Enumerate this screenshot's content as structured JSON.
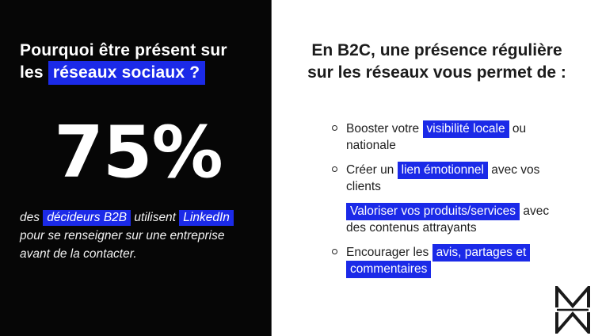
{
  "colors": {
    "accent": "#1b2ae8",
    "left_panel_background": "#060606",
    "text_dark": "#1d1d1d",
    "text_light": "#ffffff"
  },
  "left_panel": {
    "title_segments": [
      {
        "text": "Pourquoi être présent sur",
        "br": true
      },
      {
        "text": "les "
      },
      {
        "text": "réseaux sociaux ?",
        "highlight": true
      }
    ],
    "stat_value": "75%",
    "caption_segments": [
      {
        "text": "des "
      },
      {
        "text": "décideurs B2B",
        "highlight": true
      },
      {
        "text": " utilisent "
      },
      {
        "text": "LinkedIn",
        "highlight": true,
        "br": true
      },
      {
        "text": "pour se renseigner sur une entreprise",
        "br": true
      },
      {
        "text": "avant de la contacter."
      }
    ]
  },
  "right_panel": {
    "heading_segments": [
      {
        "text": "En B2C, une présence régulière",
        "br": true
      },
      {
        "text": "sur les réseaux vous permet de :"
      }
    ],
    "bullets": [
      {
        "marker": true,
        "segments": [
          {
            "text": "Booster votre "
          },
          {
            "text": "visibilité locale",
            "highlight": true
          },
          {
            "text": " ou",
            "br": true
          },
          {
            "text": "nationale"
          }
        ]
      },
      {
        "marker": true,
        "segments": [
          {
            "text": "Créer un "
          },
          {
            "text": "lien émotionnel",
            "highlight": true
          },
          {
            "text": " avec vos",
            "br": true
          },
          {
            "text": "clients"
          }
        ]
      },
      {
        "marker": false,
        "segments": [
          {
            "text": "Valoriser vos produits/services",
            "highlight": true
          },
          {
            "text": " avec",
            "br": true
          },
          {
            "text": "des contenus attrayants"
          }
        ]
      },
      {
        "marker": true,
        "segments": [
          {
            "text": "Encourager les "
          },
          {
            "text": "avis, partages et",
            "highlight": true,
            "br": true
          },
          {
            "text": "commentaires",
            "highlight": true
          }
        ]
      }
    ],
    "logo_name": "MW monogram"
  }
}
